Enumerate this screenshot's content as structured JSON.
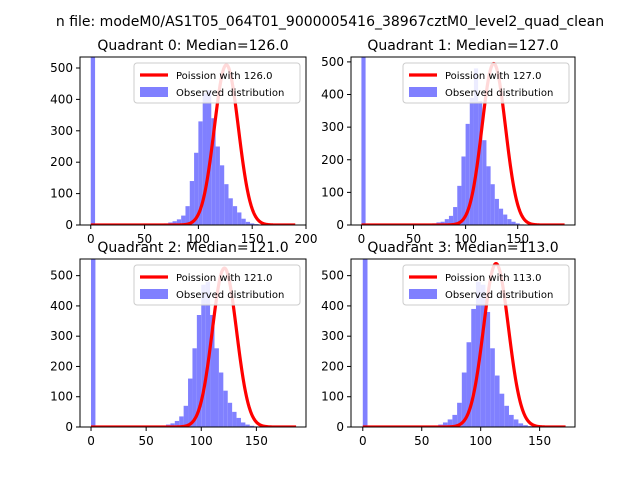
{
  "suptitle": "n file: modeM0/AS1T05_064T01_9000005416_38967cztM0_level2_quad_clean",
  "colors": {
    "hist": "#8080ff",
    "fit": "#ff0000"
  },
  "chart_data": [
    {
      "type": "histogram+line",
      "title": "Quadrant 0: Median=126.0",
      "xlim": [
        -10,
        200
      ],
      "ylim": [
        0,
        535
      ],
      "xticks": [
        "0",
        "50",
        "100",
        "150",
        "200"
      ],
      "yticks": [
        "0",
        "100",
        "200",
        "300",
        "400",
        "500"
      ],
      "legend": [
        "Poission with 126.0",
        "Observed distribution"
      ],
      "legend_position": "upper right",
      "spike": {
        "x_range": [
          0,
          4
        ],
        "height": 535
      },
      "bins": {
        "start": 60,
        "width": 4,
        "counts": [
          2,
          3,
          5,
          8,
          12,
          18,
          30,
          60,
          140,
          230,
          330,
          420,
          430,
          340,
          250,
          190,
          130,
          85,
          60,
          40,
          20,
          10,
          5,
          3
        ]
      },
      "curve": {
        "x_range": [
          0,
          190
        ],
        "peak_x": 126,
        "peak_y": 510,
        "sigma": 11.2
      }
    },
    {
      "type": "histogram+line",
      "title": "Quadrant 1: Median=127.0",
      "xlim": [
        -10,
        205
      ],
      "ylim": [
        0,
        515
      ],
      "xticks": [
        "0",
        "50",
        "100",
        "150"
      ],
      "yticks": [
        "0",
        "100",
        "200",
        "300",
        "400",
        "500"
      ],
      "legend": [
        "Poission with 127.0",
        "Observed distribution"
      ],
      "legend_position": "upper right",
      "spike": {
        "x_range": [
          0,
          4
        ],
        "height": 515
      },
      "bins": {
        "start": 60,
        "width": 4,
        "counts": [
          2,
          3,
          5,
          8,
          10,
          18,
          28,
          55,
          120,
          210,
          310,
          390,
          480,
          380,
          260,
          180,
          125,
          80,
          50,
          32,
          18,
          10,
          5,
          2
        ]
      },
      "curve": {
        "x_range": [
          0,
          195
        ],
        "peak_x": 127,
        "peak_y": 495,
        "sigma": 11.3
      }
    },
    {
      "type": "histogram+line",
      "title": "Quadrant 2: Median=121.0",
      "xlim": [
        -10,
        195
      ],
      "ylim": [
        0,
        555
      ],
      "xticks": [
        "0",
        "50",
        "100",
        "150"
      ],
      "yticks": [
        "0",
        "100",
        "200",
        "300",
        "400",
        "500"
      ],
      "legend": [
        "Poission with 121.0",
        "Observed distribution"
      ],
      "legend_position": "upper right",
      "spike": {
        "x_range": [
          0,
          4
        ],
        "height": 555
      },
      "bins": {
        "start": 56,
        "width": 4,
        "counts": [
          2,
          3,
          5,
          8,
          12,
          20,
          35,
          70,
          160,
          260,
          370,
          470,
          480,
          370,
          260,
          180,
          120,
          80,
          50,
          30,
          15,
          8,
          4,
          2
        ]
      },
      "curve": {
        "x_range": [
          0,
          186
        ],
        "peak_x": 121,
        "peak_y": 525,
        "sigma": 11.0
      }
    },
    {
      "type": "histogram+line",
      "title": "Quadrant 3: Median=113.0",
      "xlim": [
        -10,
        180
      ],
      "ylim": [
        0,
        555
      ],
      "xticks": [
        "0",
        "50",
        "100",
        "150"
      ],
      "yticks": [
        "0",
        "100",
        "200",
        "300",
        "400",
        "500"
      ],
      "legend": [
        "Poission with 113.0",
        "Observed distribution"
      ],
      "legend_position": "upper right",
      "spike": {
        "x_range": [
          0,
          4
        ],
        "height": 555
      },
      "bins": {
        "start": 52,
        "width": 4,
        "counts": [
          2,
          3,
          5,
          8,
          15,
          25,
          40,
          80,
          180,
          280,
          390,
          480,
          470,
          380,
          260,
          170,
          110,
          70,
          40,
          25,
          12,
          6,
          3,
          2
        ]
      },
      "curve": {
        "x_range": [
          0,
          172
        ],
        "peak_x": 113,
        "peak_y": 540,
        "sigma": 10.6
      }
    }
  ]
}
